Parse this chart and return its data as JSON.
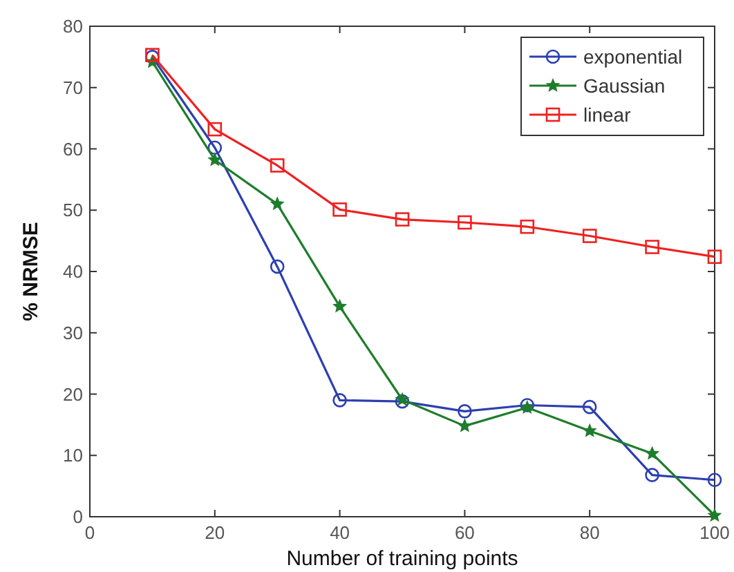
{
  "chart_data": {
    "type": "line",
    "xlabel": "Number of training points",
    "ylabel": "% NRMSE",
    "x": [
      10,
      20,
      30,
      40,
      50,
      60,
      70,
      80,
      90,
      100
    ],
    "xlim": [
      0,
      100
    ],
    "xticks": [
      0,
      20,
      40,
      60,
      80,
      100
    ],
    "ylim": [
      0,
      80
    ],
    "yticks": [
      0,
      10,
      20,
      30,
      40,
      50,
      60,
      70,
      80
    ],
    "grid": false,
    "legend": "top right",
    "line_style": "solid",
    "series": [
      {
        "name": "exponential",
        "color": "#2b3fb0",
        "marker": "circle",
        "values": [
          75,
          60.2,
          40.8,
          19,
          18.8,
          17.2,
          18.2,
          17.9,
          6.8,
          6
        ]
      },
      {
        "name": "Gaussian",
        "color": "#1e7d2c",
        "marker": "star",
        "values": [
          74.2,
          58.2,
          51,
          34.3,
          19.1,
          14.8,
          17.8,
          14,
          10.3,
          0.2
        ]
      },
      {
        "name": "linear",
        "color": "#f02020",
        "marker": "square",
        "values": [
          75.3,
          63.2,
          57.3,
          50.1,
          48.5,
          48,
          47.3,
          45.8,
          44,
          42.4
        ]
      }
    ]
  }
}
